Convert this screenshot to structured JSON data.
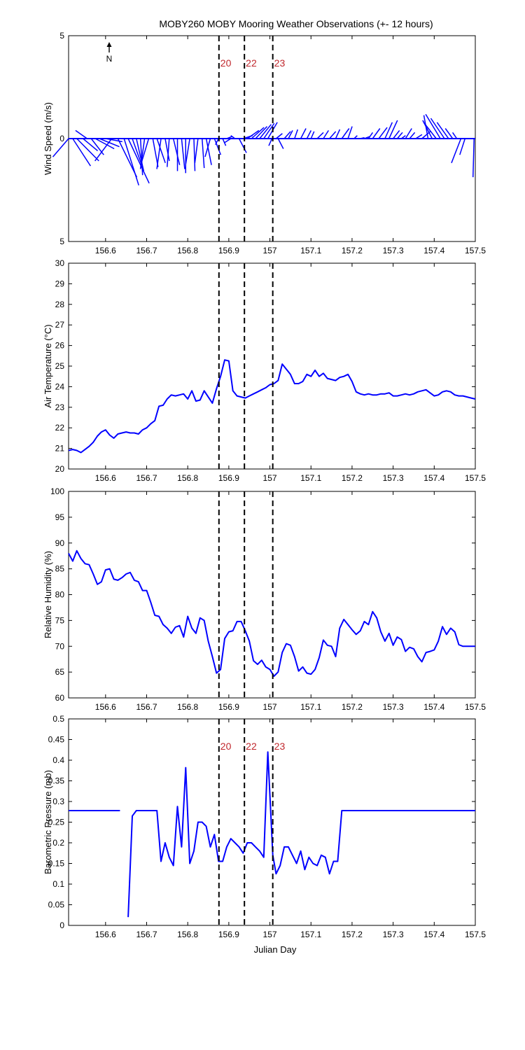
{
  "title": "MOBY260 MOBY Mooring Weather Observations (+- 12 hours)",
  "xlabel": "Julian Day",
  "north_label": "N",
  "colors": {
    "series": "#0000ff",
    "marker": "#000000",
    "marker_label": "#c0272d"
  },
  "chart_data": [
    {
      "type": "line",
      "subtype": "wind-stick",
      "ylabel": "Wind Speed (m/s)",
      "xlim": [
        156.51,
        157.5
      ],
      "ylim": [
        -5,
        5
      ],
      "yticks": [
        -5,
        0,
        5
      ],
      "ytick_labels": [
        "5",
        "0",
        "5"
      ],
      "xticks": [
        156.6,
        156.7,
        156.8,
        156.9,
        157,
        157.1,
        157.2,
        157.3,
        157.4,
        157.5
      ],
      "xtick_labels": [
        "156.6",
        "156.7",
        "156.8",
        "156.9",
        "157",
        "157.1",
        "157.2",
        "157.3",
        "157.4",
        "157.5"
      ],
      "markers": [
        {
          "x": 156.876,
          "label": "20"
        },
        {
          "x": 156.938,
          "label": "22"
        },
        {
          "x": 157.007,
          "label": "23"
        }
      ],
      "sticks": [
        [
          156.51,
          -0.75,
          -0.9
        ],
        [
          156.52,
          0.85,
          -1.35
        ],
        [
          156.53,
          1.05,
          -1.1
        ],
        [
          156.545,
          0.7,
          -0.6
        ],
        [
          156.555,
          -0.55,
          0.4
        ],
        [
          156.565,
          0.6,
          -0.8
        ],
        [
          156.575,
          0.9,
          -0.5
        ],
        [
          156.585,
          0.95,
          -0.4
        ],
        [
          156.6,
          0.8,
          -0.15
        ],
        [
          156.615,
          -0.8,
          -1.1
        ],
        [
          156.63,
          0.9,
          -1.9
        ],
        [
          156.645,
          0.7,
          -2.3
        ],
        [
          156.655,
          1.0,
          -2.2
        ],
        [
          156.665,
          0.45,
          -1.3
        ],
        [
          156.675,
          0.35,
          -1.6
        ],
        [
          156.685,
          0.1,
          -1.8
        ],
        [
          156.695,
          -0.2,
          -1.5
        ],
        [
          156.705,
          -0.35,
          -1.2
        ],
        [
          156.715,
          0.25,
          -1.4
        ],
        [
          156.725,
          0.4,
          -1.2
        ],
        [
          156.735,
          -0.2,
          -1.5
        ],
        [
          156.745,
          0.2,
          -1.1
        ],
        [
          156.755,
          -0.1,
          -1.4
        ],
        [
          156.765,
          0.3,
          -1.3
        ],
        [
          156.775,
          0.0,
          -1.6
        ],
        [
          156.785,
          0.15,
          -1.5
        ],
        [
          156.795,
          0.0,
          -1.7
        ],
        [
          156.805,
          -0.2,
          -1.3
        ],
        [
          156.815,
          0.05,
          -1.6
        ],
        [
          156.825,
          -0.15,
          -1.2
        ],
        [
          156.835,
          0.1,
          -1.45
        ],
        [
          156.845,
          0.25,
          -1.3
        ],
        [
          156.855,
          -0.25,
          -0.9
        ],
        [
          156.865,
          0.3,
          -0.8
        ],
        [
          156.875,
          -0.15,
          -0.3
        ],
        [
          156.885,
          0.15,
          -0.35
        ],
        [
          156.895,
          0.25,
          0.1
        ],
        [
          156.905,
          -0.3,
          -0.2
        ],
        [
          156.915,
          -0.2,
          0.15
        ],
        [
          156.925,
          0.35,
          -0.7
        ],
        [
          156.935,
          0.45,
          0.15
        ],
        [
          156.945,
          0.55,
          0.4
        ],
        [
          156.955,
          0.6,
          0.55
        ],
        [
          156.965,
          0.55,
          0.6
        ],
        [
          156.975,
          0.55,
          0.7
        ],
        [
          156.985,
          0.5,
          0.75
        ],
        [
          156.995,
          0.45,
          0.8
        ],
        [
          157.005,
          -0.15,
          -0.35
        ],
        [
          157.015,
          0.3,
          0.25
        ],
        [
          157.02,
          0.25,
          -0.5
        ],
        [
          157.035,
          0.3,
          0.35
        ],
        [
          157.045,
          0.2,
          0.4
        ],
        [
          157.06,
          0.15,
          0.45
        ],
        [
          157.075,
          0.25,
          0.5
        ],
        [
          157.09,
          0.2,
          0.4
        ],
        [
          157.1,
          0.15,
          0.35
        ],
        [
          157.115,
          0.3,
          0.3
        ],
        [
          157.13,
          0.25,
          0.4
        ],
        [
          157.145,
          0.3,
          0.35
        ],
        [
          157.16,
          0.2,
          0.45
        ],
        [
          157.175,
          0.35,
          0.5
        ],
        [
          157.19,
          0.2,
          0.6
        ],
        [
          157.205,
          0.15,
          0.15
        ],
        [
          157.22,
          0.2,
          0.05
        ],
        [
          157.23,
          0.25,
          0.1
        ],
        [
          157.24,
          0.2,
          0.3
        ],
        [
          157.25,
          0.35,
          0.5
        ],
        [
          157.265,
          0.4,
          0.55
        ],
        [
          157.28,
          0.35,
          0.8
        ],
        [
          157.29,
          0.4,
          0.9
        ],
        [
          157.3,
          0.3,
          0.4
        ],
        [
          157.31,
          0.25,
          0.3
        ],
        [
          157.32,
          0.2,
          0.15
        ],
        [
          157.33,
          0.3,
          0.5
        ],
        [
          157.34,
          0.25,
          0.3
        ],
        [
          157.355,
          0.3,
          0.2
        ],
        [
          157.37,
          0.4,
          0.35
        ],
        [
          157.385,
          -0.2,
          1.15
        ],
        [
          157.395,
          -0.45,
          0.9
        ],
        [
          157.405,
          -0.6,
          0.8
        ],
        [
          157.415,
          -0.7,
          1.2
        ],
        [
          157.425,
          -0.65,
          1.0
        ],
        [
          157.435,
          -0.55,
          0.8
        ],
        [
          157.445,
          -0.35,
          0.5
        ],
        [
          157.455,
          -0.2,
          0.3
        ],
        [
          157.465,
          -0.45,
          -1.2
        ],
        [
          157.475,
          -0.25,
          -0.8
        ],
        [
          157.497,
          -0.05,
          -1.9
        ]
      ]
    },
    {
      "type": "line",
      "ylabel": "Air Temperature (°C)",
      "xlim": [
        156.51,
        157.5
      ],
      "ylim": [
        20,
        30
      ],
      "yticks": [
        20,
        21,
        22,
        23,
        24,
        25,
        26,
        27,
        28,
        29,
        30
      ],
      "ytick_labels": [
        "20",
        "21",
        "22",
        "23",
        "24",
        "25",
        "26",
        "27",
        "28",
        "29",
        "30"
      ],
      "xticks": [
        156.6,
        156.7,
        156.8,
        156.9,
        157,
        157.1,
        157.2,
        157.3,
        157.4,
        157.5
      ],
      "xtick_labels": [
        "156.6",
        "156.7",
        "156.8",
        "156.9",
        "157",
        "157.1",
        "157.2",
        "157.3",
        "157.4",
        "157.5"
      ],
      "markers": [
        {
          "x": 156.876,
          "label": ""
        },
        {
          "x": 156.938,
          "label": ""
        },
        {
          "x": 157.007,
          "label": ""
        }
      ],
      "x": [
        156.51,
        156.52,
        156.53,
        156.54,
        156.55,
        156.56,
        156.57,
        156.58,
        156.59,
        156.6,
        156.61,
        156.62,
        156.63,
        156.64,
        156.65,
        156.66,
        156.67,
        156.68,
        156.69,
        156.7,
        156.71,
        156.72,
        156.73,
        156.74,
        156.75,
        156.76,
        156.77,
        156.78,
        156.79,
        156.8,
        156.81,
        156.82,
        156.83,
        156.84,
        156.85,
        156.86,
        156.87,
        156.88,
        156.89,
        156.9,
        156.91,
        156.92,
        156.93,
        156.94,
        156.95,
        156.96,
        156.97,
        156.98,
        156.99,
        157.0,
        157.01,
        157.02,
        157.03,
        157.04,
        157.05,
        157.06,
        157.07,
        157.08,
        157.09,
        157.1,
        157.11,
        157.12,
        157.13,
        157.14,
        157.15,
        157.16,
        157.17,
        157.18,
        157.19,
        157.2,
        157.21,
        157.22,
        157.23,
        157.24,
        157.25,
        157.26,
        157.27,
        157.28,
        157.29,
        157.3,
        157.31,
        157.32,
        157.33,
        157.34,
        157.35,
        157.36,
        157.37,
        157.38,
        157.39,
        157.4,
        157.41,
        157.42,
        157.43,
        157.44,
        157.45,
        157.46,
        157.47,
        157.48,
        157.49,
        157.5
      ],
      "values": [
        20.9,
        20.95,
        20.9,
        20.8,
        20.95,
        21.1,
        21.3,
        21.6,
        21.8,
        21.9,
        21.65,
        21.5,
        21.7,
        21.75,
        21.8,
        21.75,
        21.75,
        21.7,
        21.9,
        22.0,
        22.2,
        22.35,
        23.05,
        23.1,
        23.4,
        23.6,
        23.55,
        23.6,
        23.65,
        23.4,
        23.8,
        23.3,
        23.35,
        23.8,
        23.5,
        23.2,
        23.9,
        24.5,
        25.3,
        25.25,
        23.8,
        23.55,
        23.5,
        23.45,
        23.55,
        23.65,
        23.75,
        23.85,
        23.95,
        24.1,
        24.15,
        24.3,
        25.1,
        24.85,
        24.6,
        24.15,
        24.15,
        24.25,
        24.6,
        24.5,
        24.8,
        24.5,
        24.65,
        24.4,
        24.35,
        24.3,
        24.45,
        24.5,
        24.6,
        24.25,
        23.75,
        23.65,
        23.6,
        23.65,
        23.6,
        23.6,
        23.65,
        23.65,
        23.7,
        23.55,
        23.55,
        23.6,
        23.65,
        23.6,
        23.65,
        23.75,
        23.8,
        23.85,
        23.7,
        23.55,
        23.6,
        23.75,
        23.8,
        23.75,
        23.6,
        23.55,
        23.55,
        23.5,
        23.45,
        23.4
      ]
    },
    {
      "type": "line",
      "ylabel": "Relative Humidity (%)",
      "xlim": [
        156.51,
        157.5
      ],
      "ylim": [
        60,
        100
      ],
      "yticks": [
        60,
        65,
        70,
        75,
        80,
        85,
        90,
        95,
        100
      ],
      "ytick_labels": [
        "60",
        "65",
        "70",
        "75",
        "80",
        "85",
        "90",
        "95",
        "100"
      ],
      "xticks": [
        156.6,
        156.7,
        156.8,
        156.9,
        157,
        157.1,
        157.2,
        157.3,
        157.4,
        157.5
      ],
      "xtick_labels": [
        "156.6",
        "156.7",
        "156.8",
        "156.9",
        "157",
        "157.1",
        "157.2",
        "157.3",
        "157.4",
        "157.5"
      ],
      "markers": [
        {
          "x": 156.876,
          "label": ""
        },
        {
          "x": 156.938,
          "label": ""
        },
        {
          "x": 157.007,
          "label": ""
        }
      ],
      "x": [
        156.51,
        156.52,
        156.53,
        156.54,
        156.55,
        156.56,
        156.57,
        156.58,
        156.59,
        156.6,
        156.61,
        156.62,
        156.63,
        156.64,
        156.65,
        156.66,
        156.67,
        156.68,
        156.69,
        156.7,
        156.71,
        156.72,
        156.73,
        156.74,
        156.75,
        156.76,
        156.77,
        156.78,
        156.79,
        156.8,
        156.81,
        156.82,
        156.83,
        156.84,
        156.85,
        156.86,
        156.87,
        156.88,
        156.89,
        156.9,
        156.91,
        156.92,
        156.93,
        156.94,
        156.95,
        156.96,
        156.97,
        156.98,
        156.99,
        157.0,
        157.01,
        157.02,
        157.03,
        157.04,
        157.05,
        157.06,
        157.07,
        157.08,
        157.09,
        157.1,
        157.11,
        157.12,
        157.13,
        157.14,
        157.15,
        157.16,
        157.17,
        157.18,
        157.19,
        157.2,
        157.21,
        157.22,
        157.23,
        157.24,
        157.25,
        157.26,
        157.27,
        157.28,
        157.29,
        157.3,
        157.31,
        157.32,
        157.33,
        157.34,
        157.35,
        157.36,
        157.37,
        157.38,
        157.39,
        157.4,
        157.41,
        157.42,
        157.43,
        157.44,
        157.45,
        157.46,
        157.47,
        157.48,
        157.49,
        157.5
      ],
      "values": [
        88.0,
        86.5,
        88.5,
        87.0,
        86.0,
        85.8,
        84.0,
        82.0,
        82.5,
        84.8,
        85.0,
        83.0,
        82.8,
        83.3,
        84.0,
        84.3,
        82.8,
        82.5,
        80.8,
        80.8,
        78.5,
        76.0,
        75.8,
        74.2,
        73.5,
        72.5,
        73.7,
        74.0,
        71.8,
        75.8,
        73.5,
        72.5,
        75.5,
        75.0,
        71.0,
        68.0,
        64.8,
        65.5,
        71.5,
        72.8,
        73.0,
        74.8,
        74.8,
        73.0,
        71.0,
        67.2,
        66.5,
        67.3,
        66.0,
        65.5,
        64.2,
        65.0,
        68.8,
        70.5,
        70.2,
        68.0,
        65.2,
        66.0,
        64.8,
        64.6,
        65.5,
        67.8,
        71.2,
        70.2,
        70.0,
        68.0,
        73.5,
        75.2,
        74.2,
        73.2,
        72.3,
        73.0,
        74.8,
        74.2,
        76.7,
        75.5,
        72.8,
        71.0,
        72.5,
        70.2,
        71.8,
        71.3,
        69.0,
        69.8,
        69.5,
        68.0,
        67.0,
        68.8,
        69.0,
        69.3,
        71.0,
        73.8,
        72.3,
        73.5,
        72.8,
        70.3,
        70.0,
        70.0,
        70.0,
        70.0
      ]
    },
    {
      "type": "line",
      "ylabel": "Barometric Pressure (mb)",
      "xlim": [
        156.51,
        157.5
      ],
      "ylim": [
        0,
        0.5
      ],
      "yticks": [
        0,
        0.05,
        0.1,
        0.15,
        0.2,
        0.25,
        0.3,
        0.35,
        0.4,
        0.45,
        0.5
      ],
      "ytick_labels": [
        "0",
        "0.05",
        "0.1",
        "0.15",
        "0.2",
        "0.25",
        "0.3",
        "0.35",
        "0.4",
        "0.45",
        "0.5"
      ],
      "xticks": [
        156.6,
        156.7,
        156.8,
        156.9,
        157,
        157.1,
        157.2,
        157.3,
        157.4,
        157.5
      ],
      "xtick_labels": [
        "156.6",
        "156.7",
        "156.8",
        "156.9",
        "157",
        "157.1",
        "157.2",
        "157.3",
        "157.4",
        "157.5"
      ],
      "markers": [
        {
          "x": 156.876,
          "label": "20"
        },
        {
          "x": 156.938,
          "label": "22"
        },
        {
          "x": 157.007,
          "label": "23"
        }
      ],
      "segments": [
        {
          "x": [
            156.51,
            156.635
          ],
          "values": [
            0.278,
            0.278
          ]
        },
        {
          "x": [
            156.655,
            156.665,
            156.675,
            156.685,
            156.695,
            156.705,
            156.715,
            156.725,
            156.735,
            156.745,
            156.755,
            156.765,
            156.775,
            156.785,
            156.795,
            156.805,
            156.815,
            156.825,
            156.835,
            156.845,
            156.855,
            156.865,
            156.875,
            156.885,
            156.895,
            156.905,
            156.915,
            156.925,
            156.935,
            156.945,
            156.955,
            156.965,
            156.975,
            156.985,
            156.995,
            157.007,
            157.015,
            157.025,
            157.035,
            157.045,
            157.055,
            157.065,
            157.075,
            157.085,
            157.095,
            157.105,
            157.115,
            157.125,
            157.135,
            157.145,
            157.155,
            157.165,
            157.175,
            157.185,
            157.195,
            157.205,
            157.215,
            157.3,
            157.4,
            157.5
          ],
          "values": [
            0.02,
            0.265,
            0.278,
            0.278,
            0.278,
            0.278,
            0.278,
            0.278,
            0.155,
            0.2,
            0.165,
            0.145,
            0.288,
            0.19,
            0.382,
            0.15,
            0.18,
            0.25,
            0.25,
            0.24,
            0.19,
            0.22,
            0.155,
            0.155,
            0.19,
            0.21,
            0.2,
            0.19,
            0.175,
            0.2,
            0.2,
            0.19,
            0.18,
            0.165,
            0.42,
            0.17,
            0.125,
            0.145,
            0.19,
            0.19,
            0.17,
            0.15,
            0.18,
            0.135,
            0.165,
            0.15,
            0.145,
            0.17,
            0.165,
            0.125,
            0.155,
            0.155,
            0.278,
            0.278,
            0.278,
            0.278,
            0.278,
            0.278,
            0.278,
            0.278
          ]
        }
      ]
    }
  ]
}
